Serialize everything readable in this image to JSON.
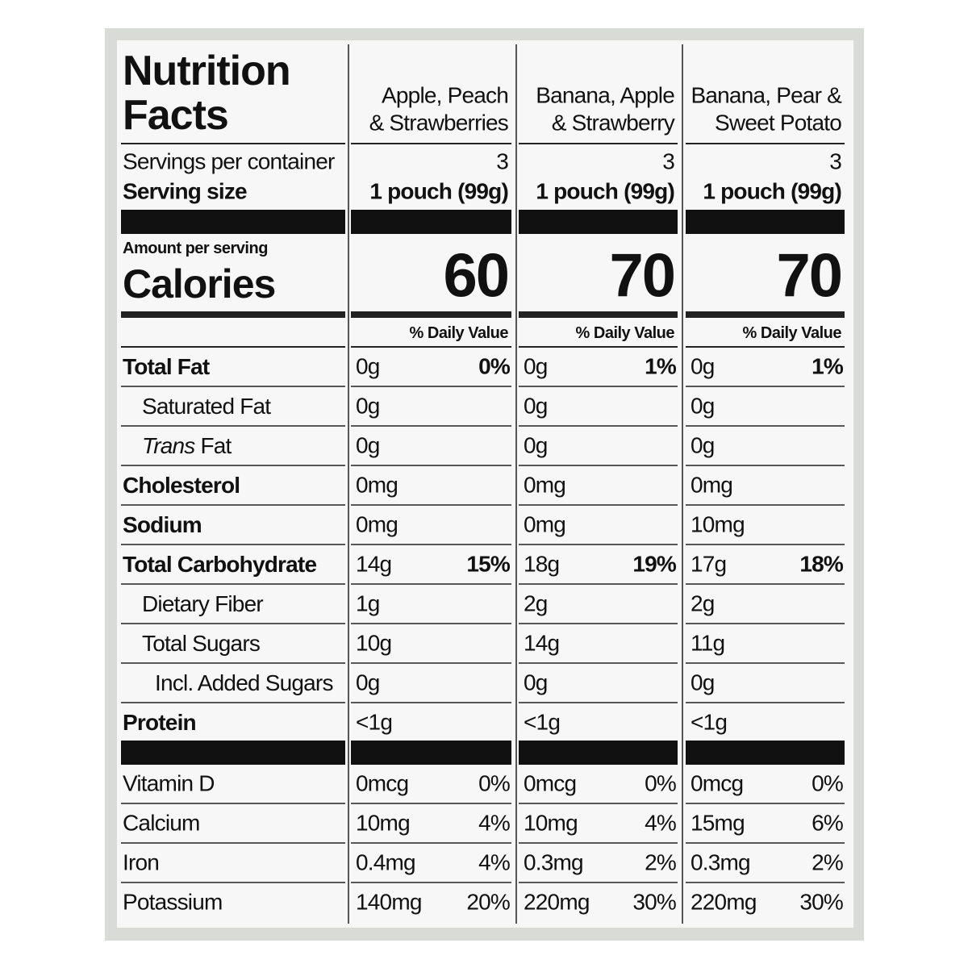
{
  "title": [
    "Nutrition",
    "Facts"
  ],
  "labels": {
    "servings_per_container": "Servings per container",
    "serving_size": "Serving size",
    "amount_per_serving": "Amount per serving",
    "calories": "Calories"
  },
  "products": [
    {
      "name": [
        "Apple, Peach",
        "& Strawberries"
      ],
      "servings_per_container": "3",
      "serving_size": "1 pouch (99g)",
      "calories": "60",
      "daily_value_header": "% Daily Value"
    },
    {
      "name": [
        "Banana, Apple",
        "& Strawberry"
      ],
      "servings_per_container": "3",
      "serving_size": "1 pouch (99g)",
      "calories": "70",
      "daily_value_header": "% Daily Value"
    },
    {
      "name": [
        "Banana, Pear &",
        "Sweet Potato"
      ],
      "servings_per_container": "3",
      "serving_size": "1 pouch (99g)",
      "calories": "70",
      "daily_value_header": "% Daily Value"
    }
  ],
  "nutrients": [
    {
      "name": [
        "Total Fat"
      ],
      "level": 0,
      "values": [
        {
          "amount": "0g",
          "dv": "0%"
        },
        {
          "amount": "0g",
          "dv": "1%"
        },
        {
          "amount": "0g",
          "dv": "1%"
        }
      ]
    },
    {
      "name": [
        "Saturated Fat"
      ],
      "level": 1,
      "values": [
        {
          "amount": "0g"
        },
        {
          "amount": "0g"
        },
        {
          "amount": "0g"
        }
      ]
    },
    {
      "name": [
        "Trans",
        " Fat"
      ],
      "level": 1,
      "italic_first": true,
      "values": [
        {
          "amount": "0g"
        },
        {
          "amount": "0g"
        },
        {
          "amount": "0g"
        }
      ]
    },
    {
      "name": [
        "Cholesterol"
      ],
      "level": 0,
      "values": [
        {
          "amount": "0mg"
        },
        {
          "amount": "0mg"
        },
        {
          "amount": "0mg"
        }
      ]
    },
    {
      "name": [
        "Sodium"
      ],
      "level": 0,
      "values": [
        {
          "amount": "0mg"
        },
        {
          "amount": "0mg"
        },
        {
          "amount": "10mg"
        }
      ]
    },
    {
      "name": [
        "Total Carbohydrate"
      ],
      "level": 0,
      "values": [
        {
          "amount": "14g",
          "dv": "15%"
        },
        {
          "amount": "18g",
          "dv": "19%"
        },
        {
          "amount": "17g",
          "dv": "18%"
        }
      ]
    },
    {
      "name": [
        "Dietary Fiber"
      ],
      "level": 1,
      "values": [
        {
          "amount": "1g"
        },
        {
          "amount": "2g"
        },
        {
          "amount": "2g"
        }
      ]
    },
    {
      "name": [
        "Total Sugars"
      ],
      "level": 1,
      "values": [
        {
          "amount": "10g"
        },
        {
          "amount": "14g"
        },
        {
          "amount": "11g"
        }
      ]
    },
    {
      "name": [
        "Incl. Added Sugars"
      ],
      "level": 2,
      "values": [
        {
          "amount": "0g"
        },
        {
          "amount": "0g"
        },
        {
          "amount": "0g"
        }
      ]
    },
    {
      "name": [
        "Protein"
      ],
      "level": 0,
      "values": [
        {
          "amount": "<1g"
        },
        {
          "amount": "<1g"
        },
        {
          "amount": "<1g"
        }
      ]
    }
  ],
  "vitamins": [
    {
      "name": "Vitamin D",
      "values": [
        {
          "amount": "0mcg",
          "dv": "0%"
        },
        {
          "amount": "0mcg",
          "dv": "0%"
        },
        {
          "amount": "0mcg",
          "dv": "0%"
        }
      ]
    },
    {
      "name": "Calcium",
      "values": [
        {
          "amount": "10mg",
          "dv": "4%"
        },
        {
          "amount": "10mg",
          "dv": "4%"
        },
        {
          "amount": "15mg",
          "dv": "6%"
        }
      ]
    },
    {
      "name": "Iron",
      "values": [
        {
          "amount": "0.4mg",
          "dv": "4%"
        },
        {
          "amount": "0.3mg",
          "dv": "2%"
        },
        {
          "amount": "0.3mg",
          "dv": "2%"
        }
      ]
    },
    {
      "name": "Potassium",
      "values": [
        {
          "amount": "140mg",
          "dv": "20%"
        },
        {
          "amount": "220mg",
          "dv": "30%"
        },
        {
          "amount": "220mg",
          "dv": "30%"
        }
      ]
    }
  ]
}
